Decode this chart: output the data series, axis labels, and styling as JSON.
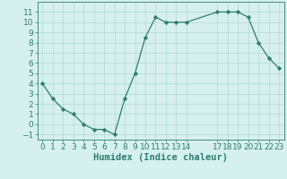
{
  "x": [
    0,
    1,
    2,
    3,
    4,
    5,
    6,
    7,
    8,
    9,
    10,
    11,
    12,
    13,
    14,
    17,
    18,
    19,
    20,
    21,
    22,
    23
  ],
  "y": [
    4,
    2.5,
    1.5,
    1,
    0,
    -0.5,
    -0.5,
    -1,
    2.5,
    5,
    8.5,
    10.5,
    10,
    10,
    10,
    11,
    11,
    11,
    10.5,
    8,
    6.5,
    5.5
  ],
  "xlim": [
    -0.5,
    23.5
  ],
  "ylim": [
    -1.5,
    12
  ],
  "xticks": [
    0,
    1,
    2,
    3,
    4,
    5,
    6,
    7,
    8,
    9,
    10,
    11,
    12,
    13,
    14,
    17,
    18,
    19,
    20,
    21,
    22,
    23
  ],
  "yticks": [
    -1,
    0,
    1,
    2,
    3,
    4,
    5,
    6,
    7,
    8,
    9,
    10,
    11
  ],
  "xlabel": "Humidex (Indice chaleur)",
  "line_color": "#2e7d6e",
  "marker_color": "#2e7d6e",
  "bg_color": "#d6f0ef",
  "grid_color": "#b0d8d5",
  "tick_label_color": "#2e7d6e",
  "xlabel_color": "#2e7d6e",
  "font_size_ticks": 6.5,
  "font_size_xlabel": 7.5
}
